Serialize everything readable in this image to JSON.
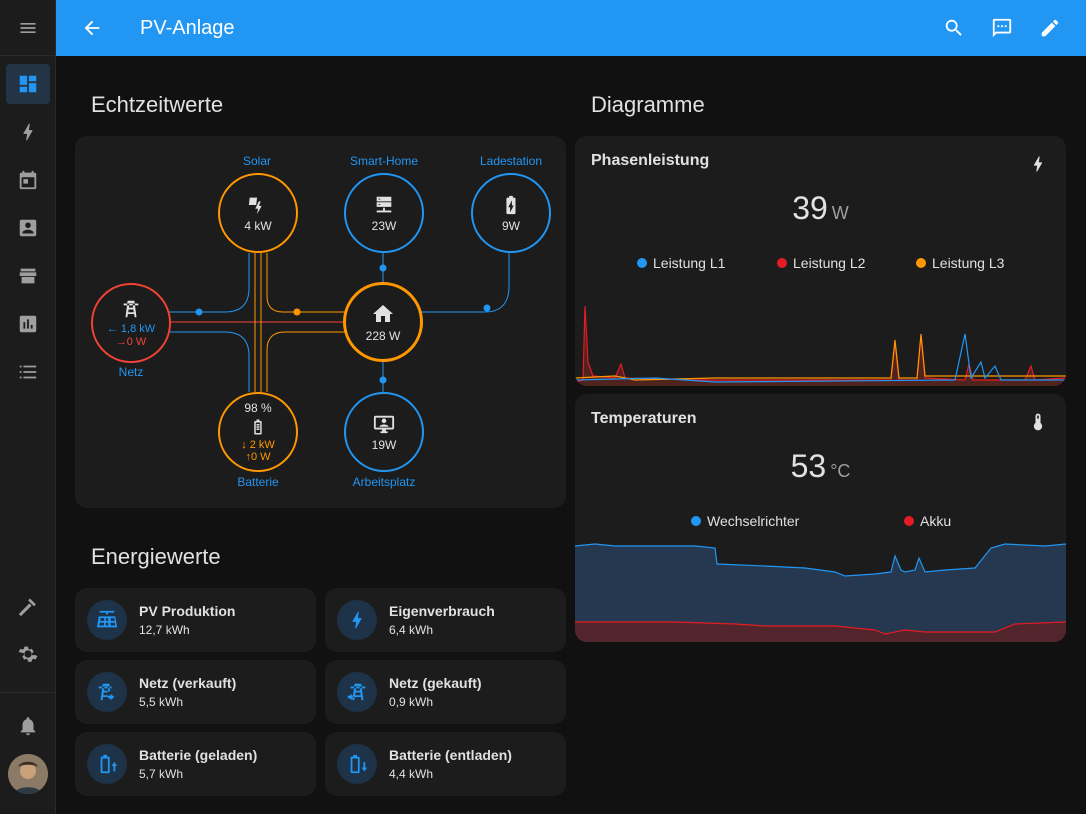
{
  "header": {
    "title": "PV-Anlage"
  },
  "sections": {
    "realtime": "Echtzeitwerte",
    "diagrams": "Diagramme",
    "energy": "Energiewerte"
  },
  "flow": {
    "solar": {
      "label": "Solar",
      "value": "4 kW"
    },
    "smarthome": {
      "label": "Smart-Home",
      "value": "23W"
    },
    "ladestation": {
      "label": "Ladestation",
      "value": "9W"
    },
    "grid": {
      "label": "Netz",
      "import": "← 1,8 kW",
      "export": "→0 W"
    },
    "home": {
      "value": "228 W"
    },
    "battery": {
      "label": "Batterie",
      "soc": "98 %",
      "in": "↓ 2 kW",
      "out": "↑0 W"
    },
    "workplace": {
      "label": "Arbeitsplatz",
      "value": "19W"
    }
  },
  "energy": [
    {
      "name": "PV Produktion",
      "value": "12,7 kWh",
      "icon": "solar-panel-icon"
    },
    {
      "name": "Eigenverbrauch",
      "value": "6,4 kWh",
      "icon": "lightning-icon"
    },
    {
      "name": "Netz (verkauft)",
      "value": "5,5 kWh",
      "icon": "transmission-tower-export-icon"
    },
    {
      "name": "Netz (gekauft)",
      "value": "0,9 kWh",
      "icon": "transmission-tower-import-icon"
    },
    {
      "name": "Batterie (geladen)",
      "value": "5,7 kWh",
      "icon": "battery-charging-icon"
    },
    {
      "name": "Batterie (entladen)",
      "value": "4,4 kWh",
      "icon": "battery-discharging-icon"
    }
  ],
  "graphs": {
    "phase": {
      "title": "Phasenleistung",
      "value": "39",
      "unit": "W",
      "icon": "lightning-icon",
      "legend": [
        "Leistung L1",
        "Leistung L2",
        "Leistung L3"
      ]
    },
    "temp": {
      "title": "Temperaturen",
      "value": "53",
      "unit": "°C",
      "icon": "thermometer-icon",
      "legend": [
        "Wechselrichter",
        "Akku"
      ]
    }
  },
  "colors": {
    "accent": "#2196f3",
    "solar": "#ff9800",
    "grid": "#f44336",
    "l1": "#2196f3",
    "l2": "#e51c23",
    "l3": "#ff9800"
  }
}
